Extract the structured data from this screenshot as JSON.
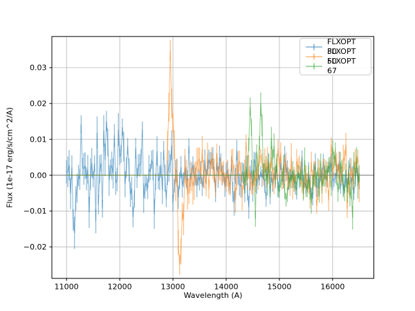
{
  "chart_data": {
    "type": "line",
    "title": "",
    "xlabel": "Wavelength (A)",
    "ylabel": "Flux (1e-17 erg/s/cm^2/A)",
    "xlim": [
      10725,
      16775
    ],
    "ylim": [
      -0.0288,
      0.0387
    ],
    "grid": true,
    "grid_color": "#b4b4b4",
    "spine_color": "#000000",
    "tick_color": "#000000",
    "zero_line": {
      "y": 0.0,
      "color": "#858585"
    },
    "x_ticks": {
      "values": [
        11000,
        12000,
        13000,
        14000,
        15000,
        16000
      ],
      "labels": [
        "11000",
        "12000",
        "13000",
        "14000",
        "15000",
        "16000"
      ]
    },
    "y_ticks": {
      "values": [
        -0.02,
        -0.01,
        0.0,
        0.01,
        0.02,
        0.03
      ],
      "labels": [
        "−0.02",
        "−0.01",
        "0.00",
        "0.01",
        "0.02",
        "0.03"
      ]
    },
    "legend": {
      "position": "upper right",
      "entries": [
        {
          "label": "FLXOPT 30",
          "color": "#1f77b4"
        },
        {
          "label": "FLXOPT 50",
          "color": "#ff7f0e"
        },
        {
          "label": "FLXOPT 67",
          "color": "#2ca02c"
        }
      ]
    },
    "series": [
      {
        "name": "FLXOPT 30",
        "color": "#1f77b4",
        "alpha": 0.5,
        "style": "errorbar-line",
        "seed": 9013,
        "x_start": 11000,
        "x_end": 16500,
        "step": 25,
        "flat_zero_until": null,
        "noise_segments": [
          {
            "from": 11000,
            "to": 13000,
            "sigma": 0.0042,
            "err": 0.0034
          },
          {
            "from": 13000,
            "to": 14500,
            "sigma": 0.003,
            "err": 0.0027
          },
          {
            "from": 14500,
            "to": 16500,
            "sigma": 0.0023,
            "err": 0.0021
          }
        ],
        "spikes": [
          {
            "x": 11150,
            "y": -0.0161
          },
          {
            "x": 11270,
            "y": 0.0142
          },
          {
            "x": 11560,
            "y": -0.0128
          },
          {
            "x": 11700,
            "y": 0.0124
          },
          {
            "x": 11760,
            "y": 0.0151
          },
          {
            "x": 12040,
            "y": 0.0134
          },
          {
            "x": 12240,
            "y": -0.0117
          },
          {
            "x": 12430,
            "y": 0.0127
          },
          {
            "x": 12650,
            "y": -0.0109
          }
        ]
      },
      {
        "name": "FLXOPT 50",
        "color": "#ff7f0e",
        "alpha": 0.5,
        "style": "errorbar-line",
        "seed": 4177,
        "x_start": 11000,
        "x_end": 16500,
        "step": 25,
        "flat_zero_until": 12880,
        "noise_segments": [
          {
            "from": 12880,
            "to": 13450,
            "sigma": 0.0056,
            "err": 0.004
          },
          {
            "from": 13450,
            "to": 16500,
            "sigma": 0.0033,
            "err": 0.0029
          }
        ],
        "spikes": [
          {
            "x": 12930,
            "y": 0.019
          },
          {
            "x": 12955,
            "y": 0.0348
          },
          {
            "x": 12980,
            "y": 0.02
          },
          {
            "x": 13010,
            "y": 0.0146
          },
          {
            "x": 13100,
            "y": -0.0188
          },
          {
            "x": 13130,
            "y": -0.025
          },
          {
            "x": 13160,
            "y": -0.0213
          },
          {
            "x": 13190,
            "y": -0.0124
          },
          {
            "x": 14380,
            "y": 0.0092
          },
          {
            "x": 15980,
            "y": 0.0086
          }
        ]
      },
      {
        "name": "FLXOPT 67",
        "color": "#2ca02c",
        "alpha": 0.5,
        "style": "errorbar-line",
        "seed": 26111,
        "x_start": 11000,
        "x_end": 16500,
        "step": 25,
        "flat_zero_until": 14320,
        "noise_segments": [
          {
            "from": 14320,
            "to": 16500,
            "sigma": 0.0032,
            "err": 0.0026
          }
        ],
        "spikes": [
          {
            "x": 14450,
            "y": 0.0192
          },
          {
            "x": 14480,
            "y": 0.0133
          },
          {
            "x": 14550,
            "y": -0.0122
          },
          {
            "x": 14650,
            "y": 0.0198
          },
          {
            "x": 14680,
            "y": 0.0139
          },
          {
            "x": 14850,
            "y": 0.0104
          },
          {
            "x": 16380,
            "y": -0.0119
          }
        ]
      }
    ]
  }
}
